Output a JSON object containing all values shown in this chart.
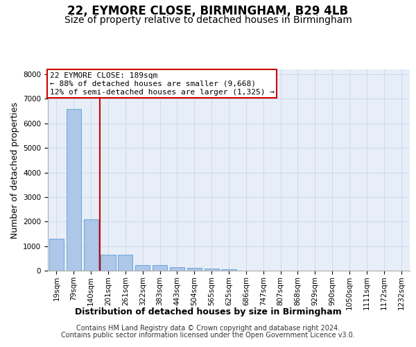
{
  "title": "22, EYMORE CLOSE, BIRMINGHAM, B29 4LB",
  "subtitle": "Size of property relative to detached houses in Birmingham",
  "xlabel": "Distribution of detached houses by size in Birmingham",
  "ylabel": "Number of detached properties",
  "categories": [
    "19sqm",
    "79sqm",
    "140sqm",
    "201sqm",
    "261sqm",
    "322sqm",
    "383sqm",
    "443sqm",
    "504sqm",
    "565sqm",
    "625sqm",
    "686sqm",
    "747sqm",
    "807sqm",
    "868sqm",
    "929sqm",
    "990sqm",
    "1050sqm",
    "1111sqm",
    "1172sqm",
    "1232sqm"
  ],
  "values": [
    1300,
    6600,
    2080,
    650,
    650,
    240,
    230,
    130,
    110,
    80,
    50,
    0,
    0,
    0,
    0,
    0,
    0,
    0,
    0,
    0,
    0
  ],
  "bar_color": "#aec6e8",
  "bar_edge_color": "#5a9fd4",
  "vline_color": "#cc0000",
  "vline_index": 2.5,
  "annotation_text": "22 EYMORE CLOSE: 189sqm\n← 88% of detached houses are smaller (9,668)\n12% of semi-detached houses are larger (1,325) →",
  "annotation_box_color": "#cc0000",
  "ylim": [
    0,
    8200
  ],
  "yticks": [
    0,
    1000,
    2000,
    3000,
    4000,
    5000,
    6000,
    7000,
    8000
  ],
  "grid_color": "#d0d8e8",
  "background_color": "#e8eef8",
  "footer_line1": "Contains HM Land Registry data © Crown copyright and database right 2024.",
  "footer_line2": "Contains public sector information licensed under the Open Government Licence v3.0.",
  "title_fontsize": 12,
  "subtitle_fontsize": 10,
  "ylabel_fontsize": 9,
  "xlabel_fontsize": 9,
  "tick_fontsize": 7.5,
  "annotation_fontsize": 8,
  "footer_fontsize": 7
}
